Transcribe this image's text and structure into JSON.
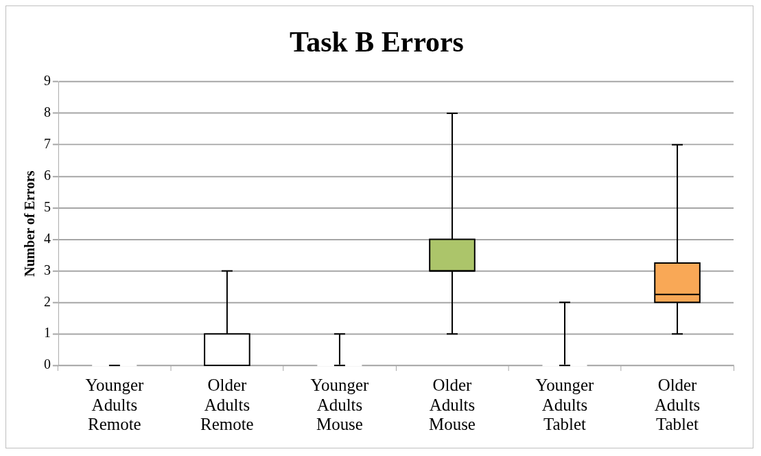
{
  "chart_data": {
    "type": "box",
    "title": "Task B Errors",
    "ylabel": "Number of Errors",
    "categories": [
      "Younger Adults Remote",
      "Older Adults Remote",
      "Younger Adults Mouse",
      "Older Adults Mouse",
      "Younger Adults Tablet",
      "Older Adults Tablet"
    ],
    "boxes": [
      {
        "low": 0,
        "q1": 0,
        "median": 0,
        "q3": 0,
        "high": 0
      },
      {
        "low": 0,
        "q1": 0,
        "median": 0,
        "q3": 1,
        "high": 3
      },
      {
        "low": 0,
        "q1": 0,
        "median": 0,
        "q3": 0,
        "high": 1
      },
      {
        "low": 1,
        "q1": 3,
        "median": 3,
        "q3": 4,
        "high": 8
      },
      {
        "low": 0,
        "q1": 0,
        "median": 0,
        "q3": 0,
        "high": 2
      },
      {
        "low": 1,
        "q1": 2,
        "median": 2.25,
        "q3": 3.25,
        "high": 7
      }
    ],
    "colors": [
      "#ffffff",
      "#ffffff",
      "#ffffff",
      "#acc56a",
      "#ffffff",
      "#f9a856"
    ],
    "ylim": [
      0,
      9
    ],
    "yticks": [
      0,
      1,
      2,
      3,
      4,
      5,
      6,
      7,
      8,
      9
    ],
    "grid": "y",
    "legend": false
  }
}
